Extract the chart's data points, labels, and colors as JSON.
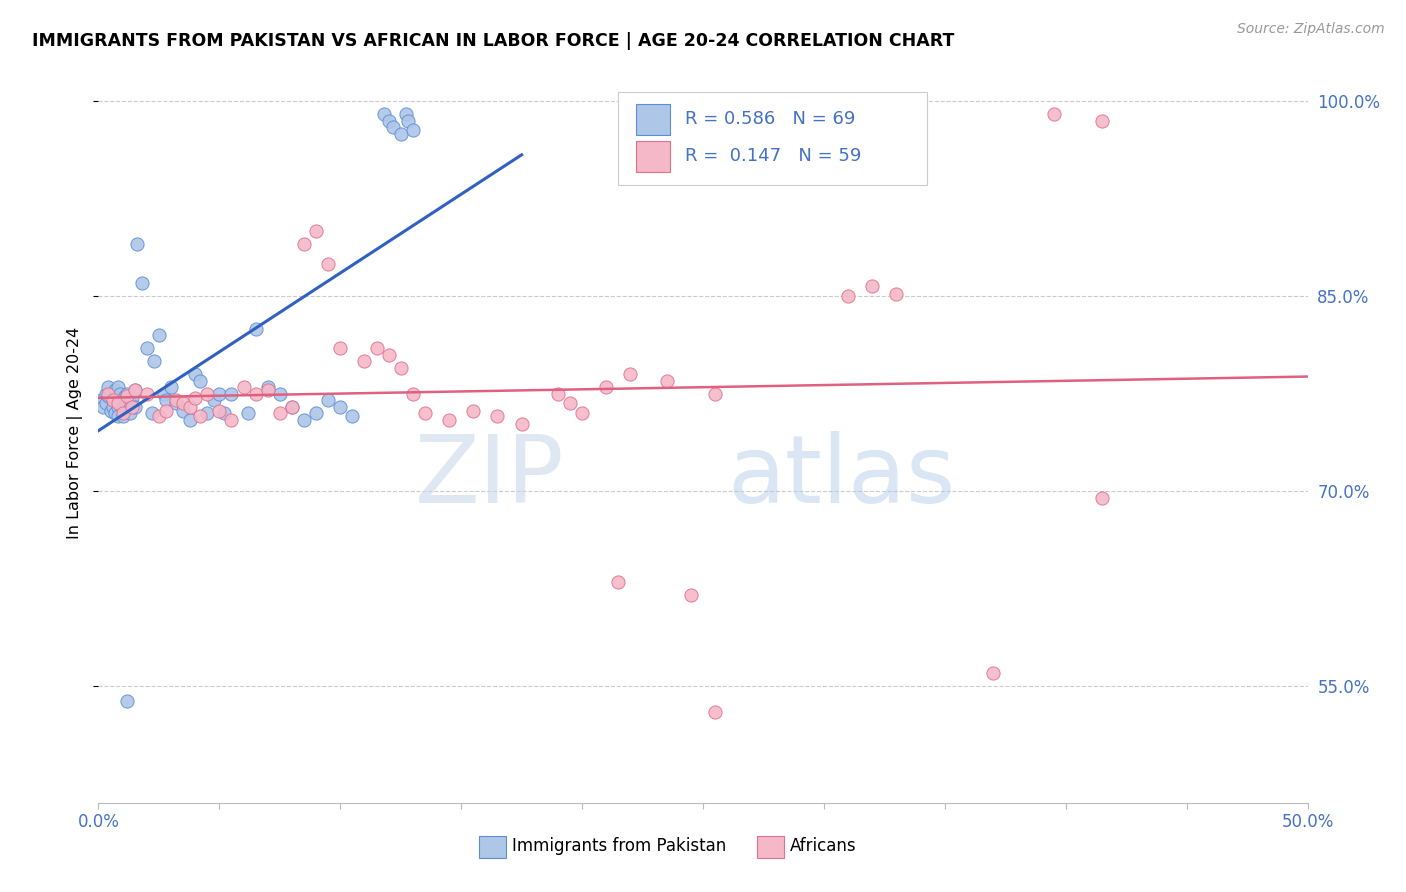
{
  "title": "IMMIGRANTS FROM PAKISTAN VS AFRICAN IN LABOR FORCE | AGE 20-24 CORRELATION CHART",
  "source": "Source: ZipAtlas.com",
  "ylabel": "In Labor Force | Age 20-24",
  "xlim": [
    0.0,
    0.5
  ],
  "ylim": [
    0.46,
    1.03
  ],
  "ytick_positions": [
    0.55,
    0.7,
    0.85,
    1.0
  ],
  "ytick_labels": [
    "55.0%",
    "70.0%",
    "85.0%",
    "100.0%"
  ],
  "xtick_positions": [
    0.0,
    0.05,
    0.1,
    0.15,
    0.2,
    0.25,
    0.3,
    0.35,
    0.4,
    0.45,
    0.5
  ],
  "xtick_labels": [
    "0.0%",
    "",
    "",
    "",
    "",
    "",
    "",
    "",
    "",
    "",
    "50.0%"
  ],
  "R_pakistan": 0.586,
  "N_pakistan": 69,
  "R_african": 0.147,
  "N_african": 59,
  "pakistan_fill": "#aec6e8",
  "pakistan_edge": "#5b8fd4",
  "african_fill": "#f4b8c8",
  "african_edge": "#e07090",
  "pakistan_line_color": "#3060c0",
  "african_line_color": "#e06080",
  "tick_color": "#4472c4",
  "watermark_color": "#d0dff5",
  "grid_color": "#cccccc",
  "legend_R_color": "#4472c4",
  "legend_box_edge": "#cccccc"
}
